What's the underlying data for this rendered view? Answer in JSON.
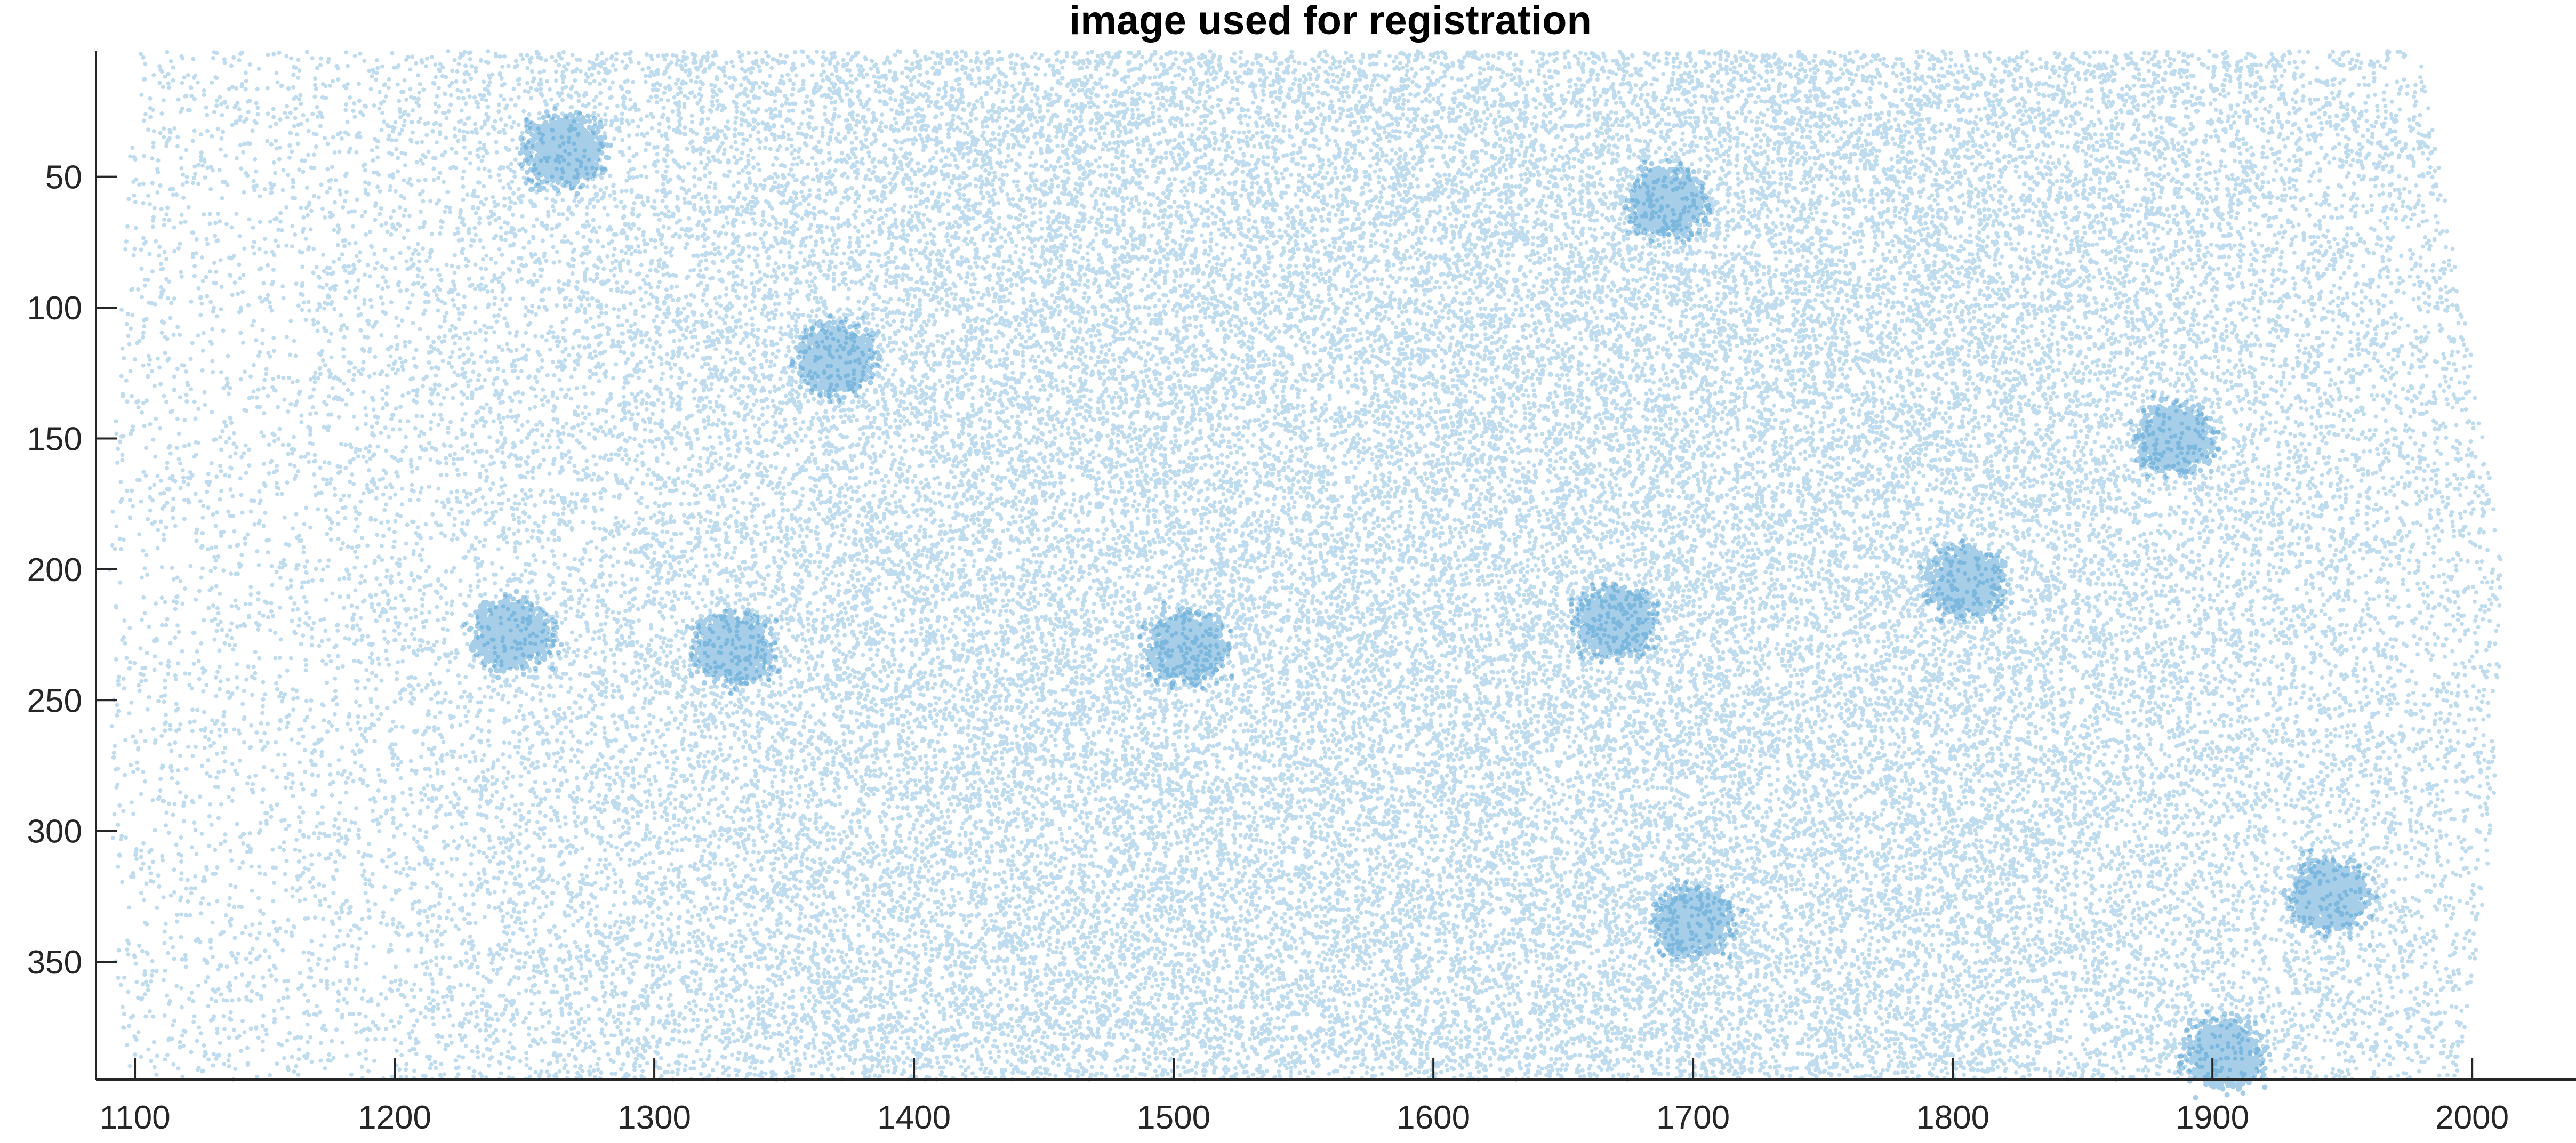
{
  "chart_data": {
    "type": "scatter",
    "title": "image used for registration",
    "xlabel": "",
    "ylabel": "",
    "xlim": [
      1085,
      2040
    ],
    "ylim": [
      395,
      2
    ],
    "y_reversed": true,
    "grid": false,
    "legend": "none",
    "xticks": [
      1100,
      1200,
      1300,
      1400,
      1500,
      1600,
      1700,
      1800,
      1900,
      2000
    ],
    "xtick_labels": [
      "1100",
      "1200",
      "1300",
      "1400",
      "1500",
      "1600",
      "1700",
      "1800",
      "1900",
      "2000"
    ],
    "yticks": [
      50,
      100,
      150,
      200,
      250,
      300,
      350
    ],
    "ytick_labels": [
      "50",
      "100",
      "150",
      "200",
      "250",
      "300",
      "350"
    ],
    "marker_color": "#0072BD",
    "marker_alpha": 0.25,
    "point_count_estimate": 300000,
    "cloud_extent": {
      "x_range": [
        1095,
        2015
      ],
      "y_range": [
        2,
        395
      ],
      "left_edge_curve": [
        [
          5,
          1102
        ],
        [
          50,
          1097
        ],
        [
          200,
          1090
        ],
        [
          350,
          1092
        ],
        [
          395,
          1098
        ]
      ],
      "right_edge_curve": [
        [
          5,
          1980
        ],
        [
          50,
          1988
        ],
        [
          150,
          2005
        ],
        [
          200,
          2012
        ],
        [
          300,
          2008
        ],
        [
          395,
          1995
        ]
      ]
    },
    "density_profile_x": [
      [
        1100,
        0.25
      ],
      [
        1150,
        0.3
      ],
      [
        1200,
        0.4
      ],
      [
        1250,
        0.55
      ],
      [
        1300,
        0.7
      ],
      [
        1350,
        0.85
      ],
      [
        1400,
        0.95
      ],
      [
        1500,
        1.0
      ],
      [
        1600,
        1.0
      ],
      [
        1700,
        1.0
      ],
      [
        1800,
        0.95
      ],
      [
        1850,
        0.85
      ],
      [
        1900,
        0.72
      ],
      [
        1950,
        0.6
      ],
      [
        2000,
        0.45
      ]
    ],
    "dense_clusters": [
      {
        "x": 1370,
        "y": 120
      },
      {
        "x": 1505,
        "y": 230
      },
      {
        "x": 1690,
        "y": 60
      },
      {
        "x": 1670,
        "y": 220
      },
      {
        "x": 1885,
        "y": 150
      },
      {
        "x": 1945,
        "y": 325
      },
      {
        "x": 1905,
        "y": 385
      },
      {
        "x": 1700,
        "y": 335
      },
      {
        "x": 1245,
        "y": 225
      },
      {
        "x": 1330,
        "y": 230
      },
      {
        "x": 1265,
        "y": 40
      },
      {
        "x": 1805,
        "y": 205
      }
    ]
  }
}
